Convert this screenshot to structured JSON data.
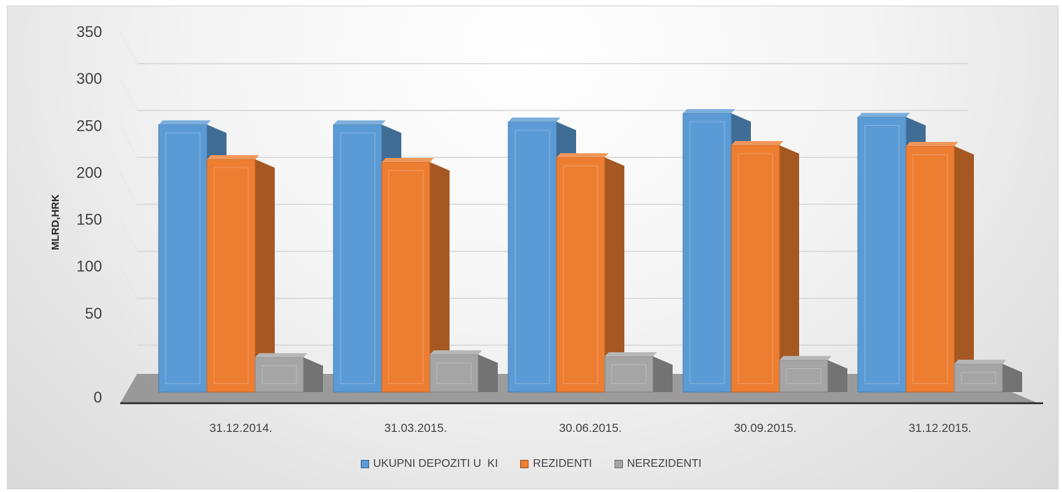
{
  "chart_data": {
    "type": "bar",
    "title": "",
    "xlabel": "",
    "ylabel": "MLRD,HRK",
    "ylim": [
      0,
      350
    ],
    "yticks": [
      0,
      50,
      100,
      150,
      200,
      250,
      300,
      350
    ],
    "grid": true,
    "legend_position": "bottom",
    "categories": [
      "31.12.2014.",
      "31.03.2015.",
      "30.06.2015.",
      "30.09.2015.",
      "31.12.2015."
    ],
    "series": [
      {
        "name": "UKUPNI DEPOZITI U  KI",
        "color": "#5b9bd5",
        "values": [
          285,
          285,
          288,
          297,
          293
        ]
      },
      {
        "name": "REZIDENTI",
        "color": "#ed7d31",
        "values": [
          248,
          245,
          250,
          263,
          262
        ]
      },
      {
        "name": "NEREZIDENTI",
        "color": "#a5a5a5",
        "values": [
          37,
          40,
          38,
          34,
          30
        ]
      }
    ]
  }
}
